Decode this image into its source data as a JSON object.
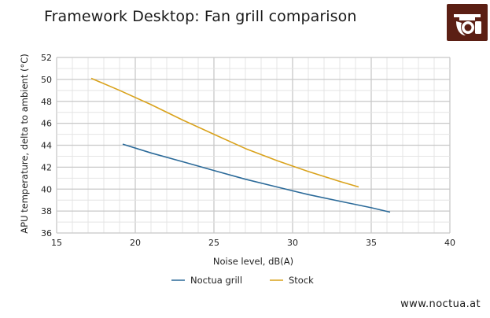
{
  "page": {
    "website": "www.noctua.at"
  },
  "colors": {
    "logo_bg": "#5b1f14",
    "grid_major": "#c8c8c8",
    "grid_minor": "#e4e4e4"
  },
  "chart_data": {
    "type": "line",
    "title": "Framework Desktop: Fan grill comparison",
    "xlabel": "Noise level, dB(A)",
    "ylabel": "APU temperature, delta to ambient (°C)",
    "xlim": [
      15,
      40
    ],
    "ylim": [
      36,
      52
    ],
    "xticks": [
      15,
      20,
      25,
      30,
      35,
      40
    ],
    "yticks": [
      36,
      38,
      40,
      42,
      44,
      46,
      48,
      50,
      52
    ],
    "grid": true,
    "legend_position": "bottom",
    "series": [
      {
        "name": "Noctua grill",
        "color": "#2b6a99",
        "x": [
          19.2,
          21,
          23,
          25,
          27,
          29,
          31,
          33,
          35,
          36.2
        ],
        "y": [
          44.1,
          43.3,
          42.5,
          41.7,
          40.9,
          40.2,
          39.5,
          38.9,
          38.3,
          37.9
        ]
      },
      {
        "name": "Stock",
        "color": "#d9a21b",
        "x": [
          17.2,
          19,
          21,
          23,
          25,
          27,
          29,
          31,
          33,
          34.2
        ],
        "y": [
          50.1,
          49.0,
          47.7,
          46.3,
          45.0,
          43.7,
          42.6,
          41.6,
          40.7,
          40.2
        ]
      }
    ]
  }
}
